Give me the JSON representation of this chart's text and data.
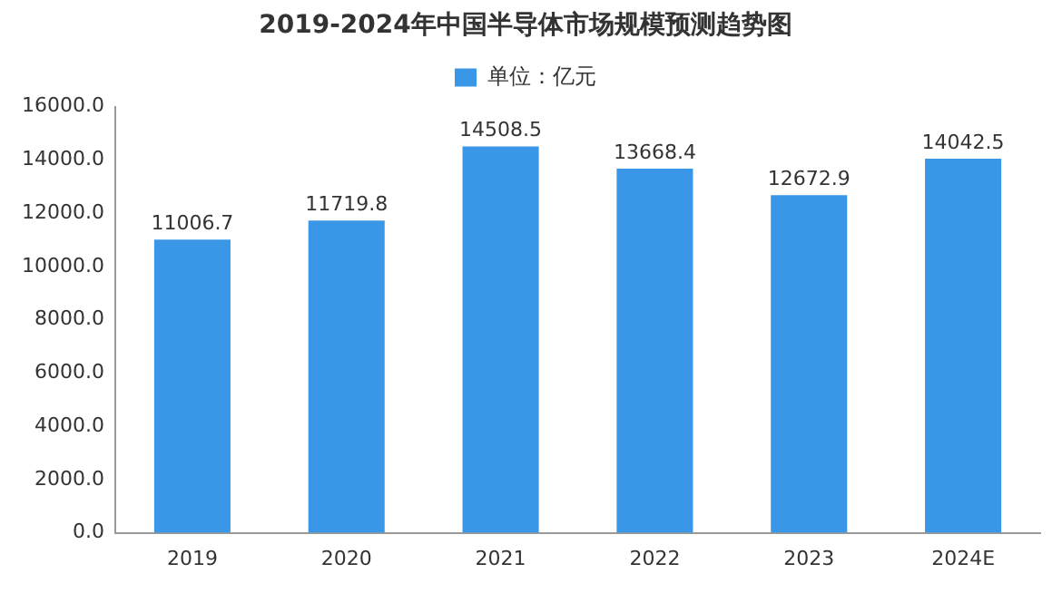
{
  "chart_data": {
    "type": "bar",
    "title": "2019-2024年中国半导体市场规模预测趋势图",
    "categories": [
      "2019",
      "2020",
      "2021",
      "2022",
      "2023",
      "2024E"
    ],
    "series": [
      {
        "name": "单位：亿元",
        "color": "#3a97e8",
        "values": [
          11006.7,
          11719.8,
          14508.5,
          13668.4,
          12672.9,
          14042.5
        ]
      }
    ],
    "ylim": [
      0,
      16000
    ],
    "yticks": [
      {
        "value": 0,
        "label": "0.0"
      },
      {
        "value": 2000,
        "label": "2000.0"
      },
      {
        "value": 4000,
        "label": "4000.0"
      },
      {
        "value": 6000,
        "label": "6000.0"
      },
      {
        "value": 8000,
        "label": "8000.0"
      },
      {
        "value": 10000,
        "label": "10000.0"
      },
      {
        "value": 12000,
        "label": "12000.0"
      },
      {
        "value": 14000,
        "label": "14000.0"
      },
      {
        "value": 16000,
        "label": "16000.0"
      }
    ],
    "grid": false,
    "legend": "top",
    "data_labels": true
  }
}
